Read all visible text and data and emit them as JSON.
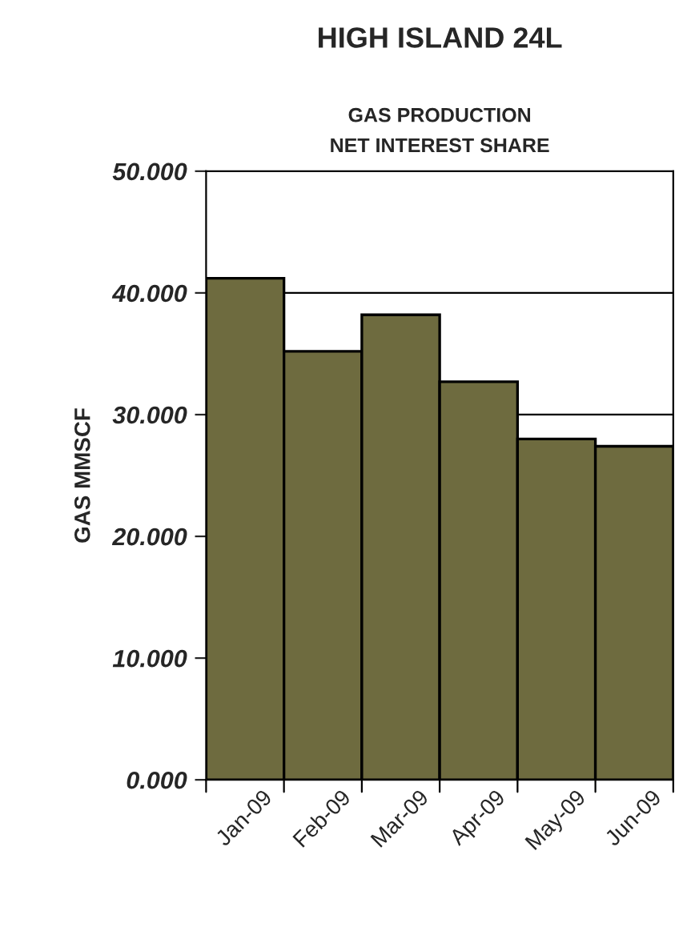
{
  "chart_data": {
    "type": "bar",
    "title": "HIGH ISLAND 24L",
    "subtitle": "GAS PRODUCTION\nNET INTEREST SHARE",
    "ylabel": "GAS MMSCF",
    "categories": [
      "Jan-09",
      "Feb-09",
      "Mar-09",
      "Apr-09",
      "May-09",
      "Jun-09"
    ],
    "values": [
      41.2,
      35.2,
      38.2,
      32.7,
      28.0,
      27.4
    ],
    "color": "#6e6b3f",
    "ylim": [
      0,
      50
    ],
    "yticks": [
      {
        "value": 0,
        "label": "0.000"
      },
      {
        "value": 10,
        "label": "10.000"
      },
      {
        "value": 20,
        "label": "20.000"
      },
      {
        "value": 30,
        "label": "30.000"
      },
      {
        "value": 40,
        "label": "40.000"
      },
      {
        "value": 50,
        "label": "50.000"
      }
    ],
    "grid": "y"
  }
}
